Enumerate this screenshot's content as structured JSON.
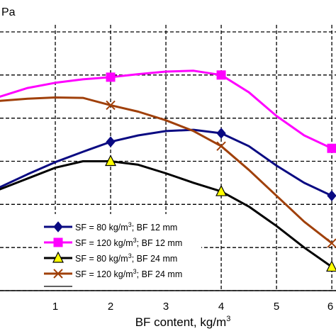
{
  "chart_data": {
    "type": "line",
    "unit_fragment": "Pa",
    "xlabel_main": "BF content, kg/m",
    "xlabel_sup": "3",
    "x_ticks": [
      "1",
      "2",
      "3",
      "4",
      "5",
      "6"
    ],
    "xlim": [
      0,
      6.05
    ],
    "grid": true,
    "legend_position": "bottom-left",
    "series": [
      {
        "name": "SF = 80 kg/m³; BF 12 mm",
        "legend": {
          "pre": "SF = 80 kg/m",
          "sup": "3",
          "post": "; BF 12 mm"
        },
        "color": "#0a0a82",
        "marker": "diamond",
        "x": [
          0,
          2,
          4,
          6
        ],
        "y": [
          2.4,
          3.45,
          3.65,
          2.2
        ],
        "curve_x": [
          0,
          0.5,
          1,
          1.5,
          2,
          2.5,
          3,
          3.5,
          4,
          4.5,
          5,
          5.5,
          6
        ],
        "curve_y": [
          2.4,
          2.7,
          2.98,
          3.22,
          3.45,
          3.6,
          3.7,
          3.73,
          3.65,
          3.35,
          2.9,
          2.5,
          2.2
        ]
      },
      {
        "name": "SF = 120 kg/m³; BF 12 mm",
        "legend": {
          "pre": "SF = 120 kg/m",
          "sup": "3",
          "post": "; BF 12 mm"
        },
        "color": "#ff00ff",
        "marker": "square",
        "x": [
          0,
          2,
          4,
          6
        ],
        "y": [
          4.5,
          4.95,
          5.0,
          3.3
        ],
        "curve_x": [
          0,
          0.5,
          1,
          1.5,
          2,
          2.5,
          3,
          3.5,
          4,
          4.5,
          5,
          5.5,
          6
        ],
        "curve_y": [
          4.5,
          4.7,
          4.82,
          4.9,
          4.95,
          5.02,
          5.08,
          5.1,
          5.0,
          4.6,
          4.05,
          3.6,
          3.3
        ]
      },
      {
        "name": "SF = 80 kg/m³; BF 24 mm",
        "legend": {
          "pre": "SF = 80 kg/m",
          "sup": "3",
          "post": "; BF 24 mm"
        },
        "color": "#000000",
        "marker": "triangle",
        "x": [
          0,
          2,
          4,
          6
        ],
        "y": [
          2.35,
          3.0,
          2.3,
          0.55
        ],
        "curve_x": [
          0,
          0.5,
          1,
          1.5,
          2,
          2.5,
          3,
          3.5,
          4,
          4.5,
          5,
          5.5,
          6
        ],
        "curve_y": [
          2.35,
          2.6,
          2.85,
          3.0,
          3.0,
          2.92,
          2.72,
          2.5,
          2.3,
          1.95,
          1.5,
          1.0,
          0.55
        ]
      },
      {
        "name": "SF = 120 kg/m³; BF 24 mm",
        "legend": {
          "pre": "SF = 120 kg/m",
          "sup": "3",
          "post": "; BF 24 mm"
        },
        "color": "#a0400a",
        "marker": "x",
        "x": [
          0,
          2,
          4,
          6
        ],
        "y": [
          4.4,
          4.3,
          3.35,
          1.1
        ],
        "curve_x": [
          0,
          0.5,
          1,
          1.5,
          2,
          2.5,
          3,
          3.5,
          4,
          4.5,
          5,
          5.5,
          6
        ],
        "curve_y": [
          4.4,
          4.45,
          4.48,
          4.47,
          4.3,
          4.15,
          3.95,
          3.7,
          3.35,
          2.8,
          2.2,
          1.6,
          1.1
        ]
      }
    ]
  }
}
